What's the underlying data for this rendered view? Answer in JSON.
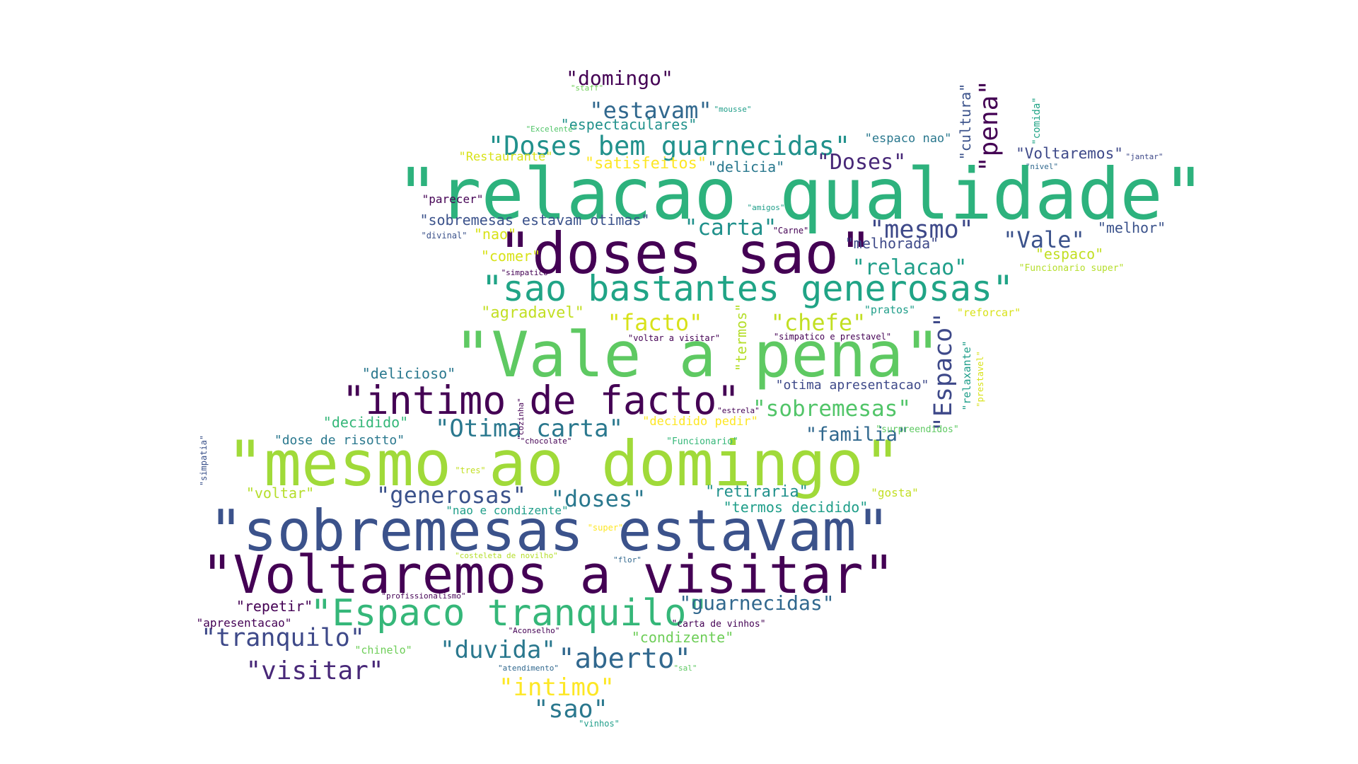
{
  "palette": {
    "dark_purple": "#440154",
    "indigo": "#482878",
    "slate_blue": "#3e4989",
    "steel_blue": "#31688e",
    "teal": "#26828e",
    "sea_green": "#1f9e89",
    "green": "#35b779",
    "light_green": "#6ece58",
    "lime": "#b5de2b",
    "yellow": "#fde725"
  },
  "words": [
    {
      "text": "\"relacao qualidade\"",
      "color": "#2db27d"
    },
    {
      "text": "\"doses sao\"",
      "color": "#440154"
    },
    {
      "text": "\"sao bastantes generosas\"",
      "color": "#20a486"
    },
    {
      "text": "\"Vale a pena\"",
      "color": "#5ec962"
    },
    {
      "text": "\"intimo de facto\"",
      "color": "#440154"
    },
    {
      "text": "\"mesmo ao domingo\"",
      "color": "#a0da39"
    },
    {
      "text": "\"sobremesas estavam\"",
      "color": "#3b528b"
    },
    {
      "text": "\"Voltaremos a visitar\"",
      "color": "#440154"
    },
    {
      "text": "\"Espaco tranquilo\"",
      "color": "#35b779"
    },
    {
      "text": "\"Doses bem guarnecidas\"",
      "color": "#21918c"
    },
    {
      "text": "\"estavam\"",
      "color": "#31688e"
    },
    {
      "text": "\"domingo\"",
      "color": "#440154"
    },
    {
      "text": "\"espectaculares\"",
      "color": "#21918c"
    },
    {
      "text": "\"pena\"",
      "color": "#440154"
    },
    {
      "text": "\"cultura\"",
      "color": "#3b528b"
    },
    {
      "text": "\"comida\"",
      "color": "#20a486"
    },
    {
      "text": "\"Doses\"",
      "color": "#482878"
    },
    {
      "text": "\"mesmo\"",
      "color": "#3e4989"
    },
    {
      "text": "\"carta\"",
      "color": "#21918c"
    },
    {
      "text": "\"Vale\"",
      "color": "#3b528b"
    },
    {
      "text": "\"relacao\"",
      "color": "#1f9e89"
    },
    {
      "text": "\"Espaco\"",
      "color": "#3e4989"
    },
    {
      "text": "\"facto\"",
      "color": "#d8e219"
    },
    {
      "text": "\"chefe\"",
      "color": "#c2df23"
    },
    {
      "text": "\"termos\"",
      "color": "#b5de2b"
    },
    {
      "text": "\"Otima carta\"",
      "color": "#2a788e"
    },
    {
      "text": "\"sobremesas\"",
      "color": "#52c569"
    },
    {
      "text": "\"familia\"",
      "color": "#31688e"
    },
    {
      "text": "\"generosas\"",
      "color": "#3b528b"
    },
    {
      "text": "\"doses\"",
      "color": "#2a788e"
    },
    {
      "text": "\"duvida\"",
      "color": "#2a788e"
    },
    {
      "text": "\"aberto\"",
      "color": "#31688e"
    },
    {
      "text": "\"intimo\"",
      "color": "#fde725"
    },
    {
      "text": "\"sao\"",
      "color": "#2a788e"
    },
    {
      "text": "\"tranquilo\"",
      "color": "#3e4989"
    },
    {
      "text": "\"visitar\"",
      "color": "#482878"
    },
    {
      "text": "\"guarnecidas\"",
      "color": "#31688e"
    },
    {
      "text": "\"repetir\"",
      "color": "#440154"
    },
    {
      "text": "\"apresentacao\"",
      "color": "#440154"
    },
    {
      "text": "\"condizente\"",
      "color": "#6ece58"
    },
    {
      "text": "\"chinelo\"",
      "color": "#6ece58"
    },
    {
      "text": "\"carta de vinhos\"",
      "color": "#440154"
    },
    {
      "text": "\"Aconselho\"",
      "color": "#440154"
    },
    {
      "text": "\"atendimento\"",
      "color": "#31688e"
    },
    {
      "text": "\"sal\"",
      "color": "#5ec962"
    },
    {
      "text": "\"vinhos\"",
      "color": "#1f9e89"
    },
    {
      "text": "\"profissionalismo\"",
      "color": "#440154"
    },
    {
      "text": "\"costeleta de novilho\"",
      "color": "#b5de2b"
    },
    {
      "text": "\"flor\"",
      "color": "#31688e"
    },
    {
      "text": "\"super\"",
      "color": "#fde725"
    },
    {
      "text": "\"nao e condizente\"",
      "color": "#1f9e89"
    },
    {
      "text": "\"voltar\"",
      "color": "#b5de2b"
    },
    {
      "text": "\"tres\"",
      "color": "#c2df23"
    },
    {
      "text": "\"retiraria\"",
      "color": "#21918c"
    },
    {
      "text": "\"gosta\"",
      "color": "#c2df23"
    },
    {
      "text": "\"termos decidido\"",
      "color": "#1f9e89"
    },
    {
      "text": "\"simpatia\"",
      "color": "#3b528b"
    },
    {
      "text": "\"dose de risotto\"",
      "color": "#2a788e"
    },
    {
      "text": "\"decidido\"",
      "color": "#35b779"
    },
    {
      "text": "\"chocolate\"",
      "color": "#440154"
    },
    {
      "text": "\"cozinha\"",
      "color": "#440154"
    },
    {
      "text": "\"decidido pedir\"",
      "color": "#fde725"
    },
    {
      "text": "\"Funcionario\"",
      "color": "#35b779"
    },
    {
      "text": "\"estrela\"",
      "color": "#440154"
    },
    {
      "text": "\"surpreendidos\"",
      "color": "#5ec962"
    },
    {
      "text": "\"delicioso\"",
      "color": "#2a788e"
    },
    {
      "text": "\"otima apresentacao\"",
      "color": "#3e4989"
    },
    {
      "text": "\"relaxante\"",
      "color": "#1f9e89"
    },
    {
      "text": "\"prestavel\"",
      "color": "#d8e219"
    },
    {
      "text": "\"voltar a visitar\"",
      "color": "#440154"
    },
    {
      "text": "\"simpatico e prestavel\"",
      "color": "#440154"
    },
    {
      "text": "\"agradavel\"",
      "color": "#c2df23"
    },
    {
      "text": "\"pratos\"",
      "color": "#1f9e89"
    },
    {
      "text": "\"reforcar\"",
      "color": "#d8e219"
    },
    {
      "text": "\"simpatico\"",
      "color": "#440154"
    },
    {
      "text": "\"comer\"",
      "color": "#d8e219"
    },
    {
      "text": "\"espaco\"",
      "color": "#c2df23"
    },
    {
      "text": "\"Funcionario super\"",
      "color": "#b5de2b"
    },
    {
      "text": "\"nao\"",
      "color": "#d8e219"
    },
    {
      "text": "\"divinal\"",
      "color": "#3b528b"
    },
    {
      "text": "\"sobremesas estavam otimas\"",
      "color": "#3b528b"
    },
    {
      "text": "\"Carne\"",
      "color": "#440154"
    },
    {
      "text": "\"melhorada\"",
      "color": "#3e4989"
    },
    {
      "text": "\"melhor\"",
      "color": "#3b528b"
    },
    {
      "text": "\"parecer\"",
      "color": "#440154"
    },
    {
      "text": "\"amigos\"",
      "color": "#1f9e89"
    },
    {
      "text": "\"Restaurante\"",
      "color": "#d8e219"
    },
    {
      "text": "\"satisfeitos\"",
      "color": "#fde725"
    },
    {
      "text": "\"delicia\"",
      "color": "#2a788e"
    },
    {
      "text": "\"Voltaremos\"",
      "color": "#3e4989"
    },
    {
      "text": "\"jantar\"",
      "color": "#3e4989"
    },
    {
      "text": "\"nivel\"",
      "color": "#31688e"
    },
    {
      "text": "\"espaco nao\"",
      "color": "#2a788e"
    },
    {
      "text": "\"Excelente\"",
      "color": "#52c569"
    },
    {
      "text": "\"staff\"",
      "color": "#6ece58"
    },
    {
      "text": "\"mousse\"",
      "color": "#1f9e89"
    }
  ]
}
